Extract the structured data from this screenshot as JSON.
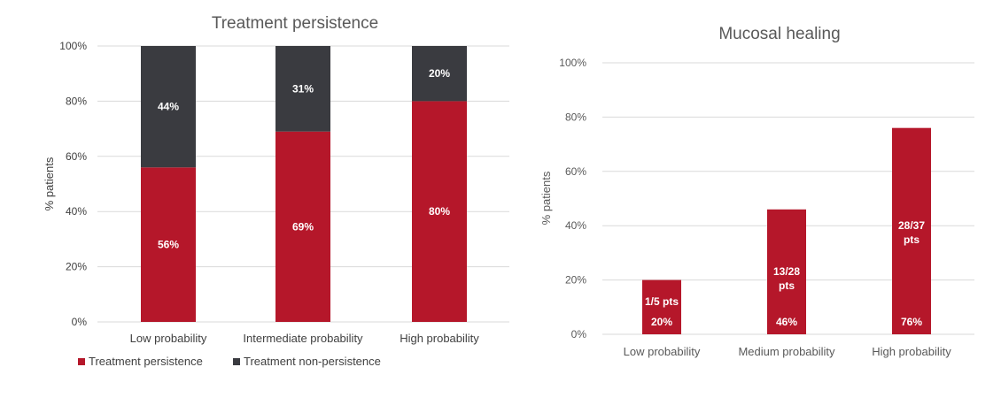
{
  "chart_data": [
    {
      "type": "bar",
      "stacked": true,
      "title": "Treatment persistence",
      "ylabel": "% patients",
      "ylim": [
        0,
        100
      ],
      "yticks": [
        0,
        20,
        40,
        60,
        80,
        100
      ],
      "ytick_labels": [
        "0%",
        "20%",
        "40%",
        "60%",
        "80%",
        "100%"
      ],
      "grid": true,
      "categories": [
        "Low probability",
        "Intermediate probability",
        "High probability"
      ],
      "series": [
        {
          "name": "Treatment persistence",
          "values": [
            56,
            69,
            80
          ],
          "labels": [
            "56%",
            "69%",
            "80%"
          ],
          "color": "#b5172a"
        },
        {
          "name": "Treatment non-persistence",
          "values": [
            44,
            31,
            20
          ],
          "labels": [
            "44%",
            "31%",
            "20%"
          ],
          "color": "#3a3b40"
        }
      ],
      "legend_position": "bottom-left"
    },
    {
      "type": "bar",
      "title": "Mucosal healing",
      "ylabel": "% patients",
      "ylim": [
        0,
        100
      ],
      "yticks": [
        0,
        20,
        40,
        60,
        80,
        100
      ],
      "ytick_labels": [
        "0%",
        "20%",
        "40%",
        "60%",
        "80%",
        "100%"
      ],
      "grid": true,
      "categories": [
        "Low probability",
        "Medium probability",
        "High probability"
      ],
      "values": [
        20,
        46,
        76
      ],
      "labels": [
        "20%",
        "46%",
        "76%"
      ],
      "annotations": [
        [
          "1/5 pts"
        ],
        [
          "13/28",
          "pts"
        ],
        [
          "28/37",
          "pts"
        ]
      ],
      "color": "#b5172a"
    }
  ]
}
